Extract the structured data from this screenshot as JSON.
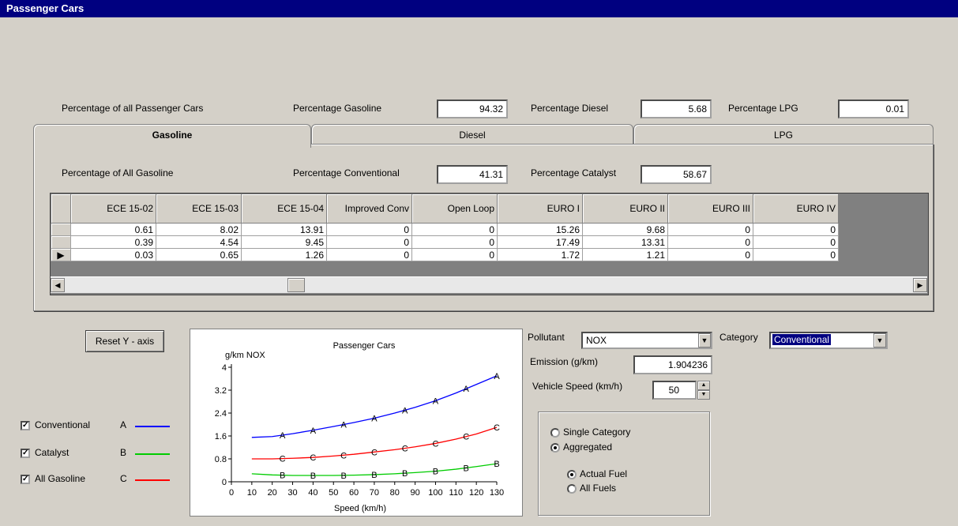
{
  "window": {
    "title": "Passenger Cars"
  },
  "top": {
    "pct_all_label": "Percentage of all  Passenger Cars",
    "gasoline_label": "Percentage Gasoline",
    "gasoline_value": "94.32",
    "diesel_label": "Percentage Diesel",
    "diesel_value": "5.68",
    "lpg_label": "Percentage LPG",
    "lpg_value": "0.01"
  },
  "tabs": [
    {
      "label": "Gasoline",
      "active": true
    },
    {
      "label": "Diesel",
      "active": false
    },
    {
      "label": "LPG",
      "active": false
    }
  ],
  "gasoline": {
    "pct_all_label": "Percentage of All Gasoline",
    "conv_label": "Percentage Conventional",
    "conv_value": "41.31",
    "cat_label": "Percentage Catalyst",
    "cat_value": "58.67"
  },
  "grid": {
    "columns": [
      "ECE 15-02",
      "ECE 15-03",
      "ECE 15-04",
      "Improved Conv",
      "Open Loop",
      "EURO I",
      "EURO II",
      "EURO III",
      "EURO IV"
    ],
    "rows": [
      [
        "0.61",
        "8.02",
        "13.91",
        "0",
        "0",
        "15.26",
        "9.68",
        "0",
        "0"
      ],
      [
        "0.39",
        "4.54",
        "9.45",
        "0",
        "0",
        "17.49",
        "13.31",
        "0",
        "0"
      ],
      [
        "0.03",
        "0.65",
        "1.26",
        "0",
        "0",
        "1.72",
        "1.21",
        "0",
        "0"
      ]
    ]
  },
  "reset_button": "Reset Y - axis",
  "legend": [
    {
      "label": "Conventional",
      "letter": "A",
      "color": "#0000ff",
      "checked": true
    },
    {
      "label": "Catalyst",
      "letter": "B",
      "color": "#00cc00",
      "checked": true
    },
    {
      "label": "All Gasoline",
      "letter": "C",
      "color": "#ff0000",
      "checked": true
    }
  ],
  "pollutant": {
    "label": "Pollutant",
    "value": "NOX"
  },
  "category": {
    "label": "Category",
    "value": "Conventional"
  },
  "emission": {
    "label": "Emission (g/km)",
    "value": "1.904236"
  },
  "speed": {
    "label": "Vehicle Speed (km/h)",
    "value": "50"
  },
  "mode": {
    "single": "Single Category",
    "aggregated": "Aggregated",
    "selected": "aggregated",
    "actual": "Actual Fuel",
    "all": "All Fuels",
    "fuel_selected": "actual"
  },
  "chart_data": {
    "type": "line",
    "title": "Passenger Cars",
    "ylabel": "g/km NOX",
    "xlabel": "Speed (km/h)",
    "xlim": [
      0,
      130
    ],
    "ylim": [
      0,
      4
    ],
    "xticks": [
      "0",
      "10",
      "20",
      "30",
      "40",
      "50",
      "60",
      "70",
      "80",
      "90",
      "100",
      "110",
      "120",
      "130"
    ],
    "yticks": [
      "0",
      "0.8",
      "1.6",
      "2.4",
      "3.2",
      "4"
    ],
    "x": [
      10,
      20,
      30,
      40,
      50,
      60,
      70,
      80,
      90,
      100,
      110,
      120,
      130
    ],
    "series": [
      {
        "name": "A",
        "color": "#0000ff",
        "marker": "A",
        "marker_x": [
          25,
          40,
          55,
          70,
          85,
          100,
          115,
          130
        ],
        "values": [
          1.55,
          1.58,
          1.68,
          1.8,
          1.93,
          2.07,
          2.22,
          2.4,
          2.6,
          2.83,
          3.1,
          3.4,
          3.7
        ]
      },
      {
        "name": "C",
        "color": "#ff0000",
        "marker": "C",
        "marker_x": [
          25,
          40,
          55,
          70,
          85,
          100,
          115,
          130
        ],
        "values": [
          0.8,
          0.8,
          0.82,
          0.85,
          0.9,
          0.96,
          1.04,
          1.12,
          1.22,
          1.34,
          1.49,
          1.67,
          1.9
        ]
      },
      {
        "name": "B",
        "color": "#00cc00",
        "marker": "B",
        "marker_x": [
          25,
          40,
          55,
          70,
          85,
          100,
          115,
          130
        ],
        "values": [
          0.28,
          0.24,
          0.22,
          0.22,
          0.22,
          0.23,
          0.25,
          0.28,
          0.32,
          0.37,
          0.44,
          0.53,
          0.63
        ]
      }
    ]
  }
}
